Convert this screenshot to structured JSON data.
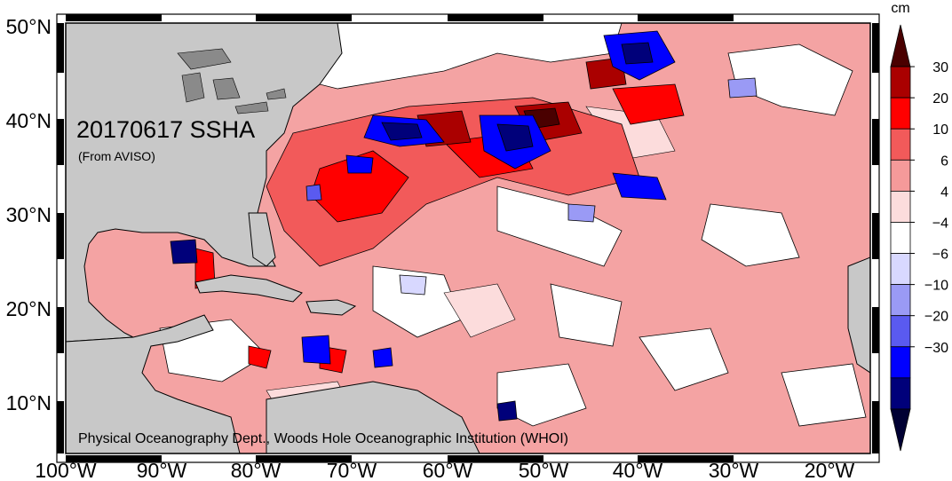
{
  "map": {
    "title": "20170617 SSHA",
    "source_note": "(From AVISO)",
    "credit": "Physical Oceanography Dept., Woods Hole Oceanographic Institution (WHOI)"
  },
  "axes": {
    "lat_labels": [
      "50°N",
      "40°N",
      "30°N",
      "20°N",
      "10°N"
    ],
    "lon_labels": [
      "100°W",
      "90°W",
      "80°W",
      "70°W",
      "60°W",
      "50°W",
      "40°W",
      "30°W",
      "20°W"
    ]
  },
  "colorbar": {
    "unit": "cm",
    "tick_labels": [
      "30",
      "20",
      "10",
      "6",
      "4",
      "−4",
      "−6",
      "−10",
      "−20",
      "−30"
    ],
    "colors": [
      "#4a0000",
      "#aa0000",
      "#ff0000",
      "#f25a5a",
      "#f59a9a",
      "#fcdcdc",
      "#ffffff",
      "#d8d8ff",
      "#9a9af5",
      "#5a5af0",
      "#0000ff",
      "#00007a",
      "#000033"
    ]
  },
  "colors": {
    "land": "#c8c8c8",
    "ocean_base": "#f4a3a3"
  }
}
